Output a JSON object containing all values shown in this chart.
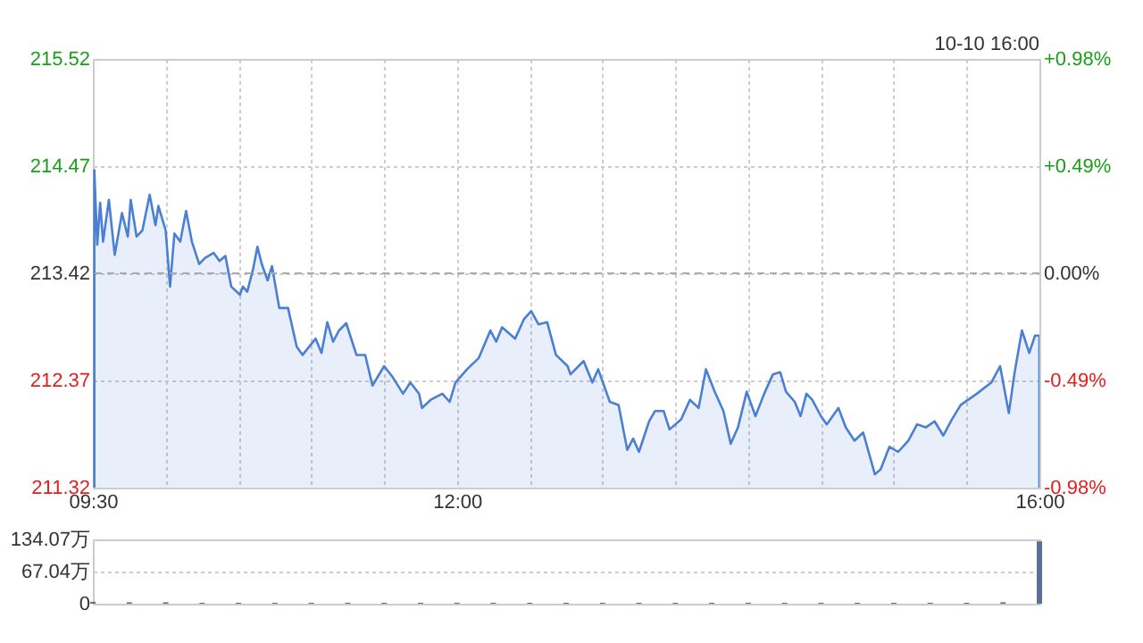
{
  "chart_data": [
    {
      "type": "area",
      "annotations": [
        "10-10 16:00"
      ],
      "x": [
        9.51,
        9.53,
        9.55,
        9.57,
        9.61,
        9.65,
        9.7,
        9.74,
        9.76,
        9.8,
        9.84,
        9.89,
        9.93,
        9.95,
        10.0,
        10.03,
        10.06,
        10.1,
        10.14,
        10.18,
        10.23,
        10.27,
        10.33,
        10.37,
        10.41,
        10.45,
        10.51,
        10.53,
        10.56,
        10.6,
        10.63,
        10.66,
        10.7,
        10.73,
        10.78,
        10.84,
        10.9,
        10.94,
        11.03,
        11.07,
        11.11,
        11.15,
        11.19,
        11.24,
        11.31,
        11.37,
        11.42,
        11.5,
        11.56,
        11.63,
        11.68,
        11.74,
        11.76,
        11.82,
        11.9,
        11.95,
        11.99,
        12.07,
        12.15,
        12.23,
        12.27,
        12.31,
        12.4,
        12.46,
        12.51,
        12.56,
        12.62,
        12.68,
        12.76,
        12.78,
        12.87,
        12.93,
        12.97,
        13.05,
        13.11,
        13.17,
        13.21,
        13.25,
        13.32,
        13.36,
        13.42,
        13.46,
        13.54,
        13.6,
        13.66,
        13.71,
        13.77,
        13.83,
        13.88,
        13.93,
        13.99,
        14.05,
        14.11,
        14.17,
        14.22,
        14.26,
        14.32,
        14.36,
        14.4,
        14.44,
        14.5,
        14.54,
        14.62,
        14.67,
        14.73,
        14.79,
        14.87,
        14.91,
        14.97,
        15.03,
        15.1,
        15.16,
        15.22,
        15.28,
        15.34,
        15.4,
        15.46,
        15.57,
        15.67,
        15.73,
        15.79,
        15.83,
        15.88,
        15.93,
        15.97,
        16.0
      ],
      "series": [
        {
          "color": "#4a7fd4",
          "values": [
            214.43,
            213.7,
            214.11,
            213.73,
            214.14,
            213.6,
            214.01,
            213.78,
            214.14,
            213.78,
            213.84,
            214.19,
            213.89,
            214.08,
            213.84,
            213.29,
            213.81,
            213.73,
            214.03,
            213.73,
            213.51,
            213.57,
            213.62,
            213.54,
            213.59,
            213.29,
            213.21,
            213.29,
            213.24,
            213.46,
            213.68,
            213.51,
            213.35,
            213.49,
            213.08,
            213.08,
            212.7,
            212.62,
            212.78,
            212.64,
            212.94,
            212.75,
            212.86,
            212.93,
            212.62,
            212.62,
            212.32,
            212.51,
            212.4,
            212.24,
            212.35,
            212.24,
            212.1,
            212.18,
            212.24,
            212.16,
            212.35,
            212.48,
            212.59,
            212.86,
            212.75,
            212.89,
            212.78,
            212.97,
            213.05,
            212.92,
            212.94,
            212.62,
            212.51,
            212.43,
            212.56,
            212.35,
            212.48,
            212.16,
            212.13,
            211.69,
            211.8,
            211.67,
            211.97,
            212.07,
            212.07,
            211.89,
            211.99,
            212.18,
            212.1,
            212.48,
            212.26,
            212.07,
            211.75,
            211.91,
            212.26,
            212.02,
            212.24,
            212.43,
            212.45,
            212.26,
            212.16,
            212.02,
            212.24,
            212.18,
            212.02,
            211.94,
            212.1,
            211.91,
            211.78,
            211.86,
            211.45,
            211.5,
            211.72,
            211.67,
            211.78,
            211.94,
            211.91,
            211.97,
            211.83,
            211.99,
            212.13,
            212.24,
            212.35,
            212.51,
            212.05,
            212.45,
            212.86,
            212.64,
            212.81,
            212.81
          ]
        }
      ],
      "xlim": [
        9.5,
        16
      ],
      "xticks": [
        {
          "value": 9.5,
          "label": "09:30"
        },
        {
          "value": 10,
          "label": null
        },
        {
          "value": 10.5,
          "label": null
        },
        {
          "value": 11,
          "label": null
        },
        {
          "value": 11.5,
          "label": null
        },
        {
          "value": 12,
          "label": "12:00"
        },
        {
          "value": 12.5,
          "label": null
        },
        {
          "value": 13,
          "label": null
        },
        {
          "value": 13.5,
          "label": null
        },
        {
          "value": 14,
          "label": null
        },
        {
          "value": 14.5,
          "label": null
        },
        {
          "value": 15,
          "label": null
        },
        {
          "value": 15.5,
          "label": null
        },
        {
          "value": 16,
          "label": "16:00"
        }
      ],
      "ylim": [
        211.32,
        215.52
      ],
      "yticks": [
        211.32,
        212.37,
        213.42,
        214.47,
        215.52
      ],
      "y2lim": [
        -0.98,
        0.98
      ],
      "y2ticks": [
        {
          "value": -0.98,
          "label": "-0.98%"
        },
        {
          "value": -0.49,
          "label": "-0.49%"
        },
        {
          "value": 0,
          "label": "0.00%"
        },
        {
          "value": 0.49,
          "label": "+0.49%"
        },
        {
          "value": 0.98,
          "label": "+0.98%"
        }
      ],
      "ref_lines": [
        {
          "axis": "y",
          "value": 213.42,
          "color": "#aaaaaa",
          "line_style": "dashed"
        }
      ],
      "grid": true
    },
    {
      "type": "bar",
      "x": [
        9.5,
        9.75,
        10,
        10.25,
        10.5,
        10.75,
        11,
        11.25,
        11.5,
        11.75,
        12,
        12.25,
        12.5,
        12.75,
        13,
        13.25,
        13.5,
        13.75,
        14,
        14.25,
        14.5,
        14.75,
        15,
        15.25,
        15.5,
        15.75,
        16
      ],
      "series": [
        {
          "color": "#5b6f99",
          "values": [
            4,
            3,
            3,
            2,
            2,
            2,
            2,
            2,
            2,
            2,
            2,
            2,
            2,
            2,
            2,
            2,
            2,
            2,
            2,
            2,
            2,
            2,
            2,
            2,
            2,
            3,
            130
          ]
        }
      ],
      "xlim": [
        9.5,
        16
      ],
      "xticks": [
        {
          "value": 9.5,
          "label": null
        },
        {
          "value": 16,
          "label": null
        }
      ],
      "ylim": [
        0,
        134.07
      ],
      "yticks": [
        0,
        {
          "value": 67.04,
          "label": "67.04万"
        },
        {
          "value": 134.07,
          "label": "134.07万"
        }
      ],
      "tick_labels": "y",
      "grid": "y"
    }
  ]
}
